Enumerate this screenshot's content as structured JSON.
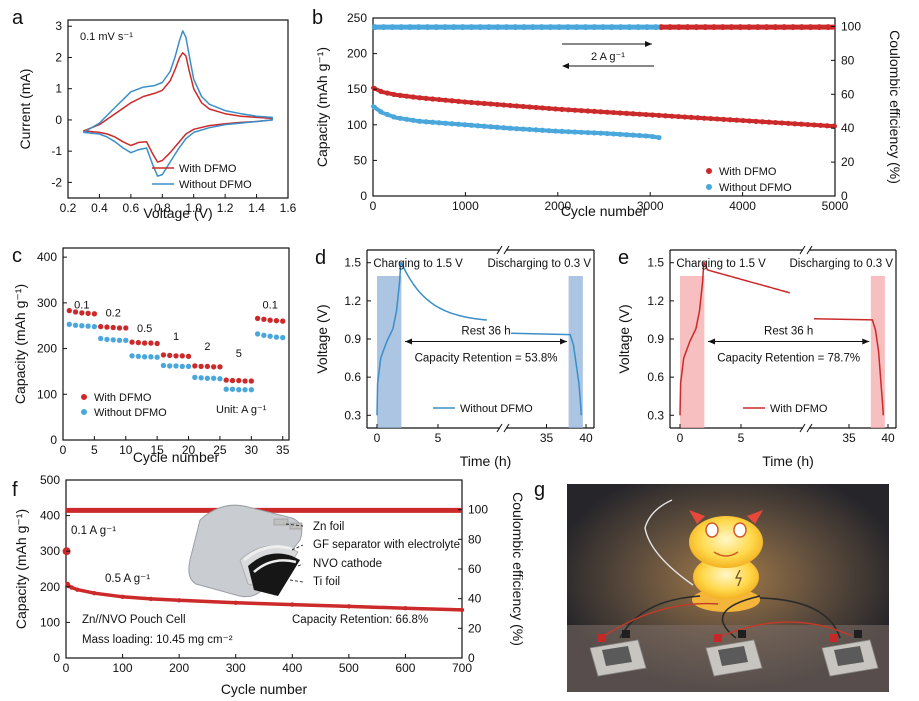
{
  "colors": {
    "red": "#cc2a2a",
    "blue": "#3a8fc8",
    "blue_dot": "#4aa7dc",
    "shade_blue": "#8fb2d9",
    "shade_red": "#f4a9a9",
    "axis": "#111111"
  },
  "panel_labels": {
    "a": "a",
    "b": "b",
    "c": "c",
    "d": "d",
    "e": "e",
    "f": "f",
    "g": "g"
  },
  "chart_data": [
    {
      "id": "a",
      "type": "line",
      "xlabel": "Voltage (V)",
      "ylabel": "Current (mA)",
      "xlim": [
        0.2,
        1.6
      ],
      "ylim": [
        -2.5,
        3.2
      ],
      "xticks": [
        0.2,
        0.4,
        0.6,
        0.8,
        1.0,
        1.2,
        1.4,
        1.6
      ],
      "xtick_labels": [
        "0.2",
        "0.4",
        "0.6",
        "0.8",
        "1.0",
        "1.2",
        "1.4",
        "1.6"
      ],
      "yticks": [
        -2,
        -1,
        0,
        1,
        2,
        3
      ],
      "ytick_labels": [
        "-2",
        "-1",
        "0",
        "1",
        "2",
        "3"
      ],
      "annotation": "0.1 mV s⁻¹",
      "legend": [
        "With DFMO",
        "Without DFMO"
      ],
      "series": [
        {
          "name": "With DFMO",
          "color": "#cc2a2a",
          "x": [
            0.3,
            0.4,
            0.5,
            0.6,
            0.68,
            0.75,
            0.8,
            0.85,
            0.88,
            0.91,
            0.93,
            0.95,
            0.97,
            1.0,
            1.05,
            1.1,
            1.2,
            1.3,
            1.4,
            1.5,
            1.5,
            1.4,
            1.3,
            1.2,
            1.1,
            1.0,
            0.95,
            0.9,
            0.85,
            0.8,
            0.77,
            0.74,
            0.7,
            0.65,
            0.6,
            0.55,
            0.5,
            0.45,
            0.4,
            0.3
          ],
          "y": [
            -0.35,
            -0.15,
            0.2,
            0.55,
            0.75,
            0.85,
            0.95,
            1.25,
            1.6,
            2.0,
            2.15,
            2.05,
            1.6,
            1.0,
            0.55,
            0.35,
            0.2,
            0.12,
            0.08,
            0.05,
            0.0,
            -0.05,
            -0.08,
            -0.12,
            -0.18,
            -0.3,
            -0.45,
            -0.75,
            -1.05,
            -1.3,
            -1.35,
            -1.1,
            -0.7,
            -0.72,
            -0.82,
            -0.7,
            -0.55,
            -0.45,
            -0.4,
            -0.35
          ]
        },
        {
          "name": "Without DFMO",
          "color": "#3a8fc8",
          "x": [
            0.3,
            0.4,
            0.5,
            0.6,
            0.68,
            0.75,
            0.8,
            0.85,
            0.88,
            0.91,
            0.93,
            0.95,
            0.97,
            1.0,
            1.05,
            1.1,
            1.2,
            1.3,
            1.4,
            1.5,
            1.5,
            1.4,
            1.3,
            1.2,
            1.1,
            1.0,
            0.95,
            0.9,
            0.85,
            0.8,
            0.77,
            0.74,
            0.7,
            0.65,
            0.6,
            0.55,
            0.5,
            0.45,
            0.4,
            0.3
          ],
          "y": [
            -0.4,
            -0.1,
            0.4,
            0.9,
            1.05,
            1.1,
            1.2,
            1.55,
            2.0,
            2.55,
            2.85,
            2.65,
            2.1,
            1.3,
            0.75,
            0.5,
            0.3,
            0.2,
            0.12,
            0.08,
            0.0,
            -0.05,
            -0.1,
            -0.15,
            -0.25,
            -0.4,
            -0.6,
            -0.95,
            -1.35,
            -1.75,
            -1.8,
            -1.45,
            -0.9,
            -0.95,
            -1.05,
            -0.9,
            -0.7,
            -0.55,
            -0.45,
            -0.4
          ]
        }
      ]
    },
    {
      "id": "b",
      "type": "scatter",
      "xlabel": "Cycle number",
      "ylabel": "Capacity (mAh g⁻¹)",
      "y2label": "Coulombic efficiency (%)",
      "xlim": [
        0,
        5000
      ],
      "ylim": [
        0,
        250
      ],
      "y2lim": [
        0,
        105
      ],
      "xticks": [
        0,
        1000,
        2000,
        3000,
        4000,
        5000
      ],
      "xtick_labels": [
        "0",
        "1000",
        "2000",
        "3000",
        "4000",
        "5000"
      ],
      "yticks": [
        0,
        50,
        100,
        150,
        200,
        250
      ],
      "ytick_labels": [
        "0",
        "50",
        "100",
        "150",
        "200",
        "250"
      ],
      "y2ticks": [
        0,
        20,
        40,
        60,
        80,
        100
      ],
      "y2tick_labels": [
        "0",
        "20",
        "40",
        "60",
        "80",
        "100"
      ],
      "annotation": "2 A g⁻¹",
      "legend": [
        "With DFMO",
        "Without DFMO"
      ],
      "series": [
        {
          "name": "With DFMO capacity",
          "color": "#cc2a2a",
          "x": [
            0,
            100,
            250,
            500,
            1000,
            1500,
            2000,
            2500,
            3000,
            3500,
            4000,
            4500,
            5000
          ],
          "y": [
            152,
            146,
            142,
            138,
            132,
            127,
            122,
            118,
            114,
            110,
            106,
            102,
            98
          ]
        },
        {
          "name": "Without DFMO capacity",
          "color": "#4aa7dc",
          "x": [
            0,
            100,
            250,
            500,
            1000,
            1500,
            2000,
            2500,
            3000,
            3100
          ],
          "y": [
            126,
            117,
            110,
            105,
            100,
            95,
            91,
            88,
            84,
            82
          ]
        },
        {
          "name": "With DFMO CE",
          "color": "#cc2a2a",
          "axis": "y2",
          "x_range": [
            3100,
            5000
          ],
          "y": 99.6
        },
        {
          "name": "Without DFMO CE",
          "color": "#4aa7dc",
          "axis": "y2",
          "x_range": [
            0,
            3100
          ],
          "y": 99.6
        }
      ]
    },
    {
      "id": "c",
      "type": "scatter",
      "xlabel": "Cycle number",
      "ylabel": "Capacity (mAh g⁻¹)",
      "xlim": [
        0,
        36
      ],
      "ylim": [
        0,
        420
      ],
      "xticks": [
        0,
        5,
        10,
        15,
        20,
        25,
        30,
        35
      ],
      "xtick_labels": [
        "0",
        "5",
        "10",
        "15",
        "20",
        "25",
        "30",
        "35"
      ],
      "yticks": [
        0,
        100,
        200,
        300,
        400
      ],
      "ytick_labels": [
        "0",
        "100",
        "200",
        "300",
        "400"
      ],
      "rate_labels": [
        "0.1",
        "0.2",
        "0.5",
        "1",
        "2",
        "5",
        "0.1"
      ],
      "unit_note": "Unit: A g⁻¹",
      "legend": [
        "With DFMO",
        "Without DFMO"
      ],
      "x": [
        1,
        2,
        3,
        4,
        5,
        6,
        7,
        8,
        9,
        10,
        11,
        12,
        13,
        14,
        15,
        16,
        17,
        18,
        19,
        20,
        21,
        22,
        23,
        24,
        25,
        26,
        27,
        28,
        29,
        30,
        31,
        32,
        33,
        34,
        35
      ],
      "series": [
        {
          "name": "With DFMO",
          "color": "#cc2a2a",
          "values": [
            283,
            280,
            278,
            277,
            276,
            248,
            247,
            246,
            245,
            245,
            214,
            213,
            212,
            212,
            211,
            186,
            185,
            184,
            184,
            183,
            162,
            161,
            161,
            160,
            160,
            131,
            130,
            130,
            129,
            129,
            266,
            264,
            262,
            261,
            260
          ]
        },
        {
          "name": "Without DFMO",
          "color": "#4aa7dc",
          "values": [
            253,
            251,
            250,
            249,
            248,
            222,
            220,
            219,
            218,
            218,
            184,
            183,
            182,
            182,
            181,
            163,
            162,
            162,
            161,
            161,
            137,
            136,
            135,
            135,
            134,
            111,
            111,
            110,
            110,
            110,
            232,
            229,
            227,
            225,
            224
          ]
        }
      ]
    },
    {
      "id": "d",
      "type": "line",
      "xlabel": "Time (h)",
      "ylabel": "Voltage (V)",
      "ylim": [
        0.2,
        1.6
      ],
      "xtick_labels": [
        "0",
        "5",
        "35",
        "40"
      ],
      "yticks": [
        0.3,
        0.6,
        0.9,
        1.2,
        1.5
      ],
      "ytick_labels": [
        "0.3",
        "0.6",
        "0.9",
        "1.2",
        "1.5"
      ],
      "charge_label": "Charging to 1.5 V",
      "discharge_label": "Discharging to 0.3 V",
      "rest_label": "Rest 36 h",
      "retention_label": "Capacity Retention = 53.8%",
      "legend": [
        "Without DFMO"
      ],
      "series": [
        {
          "name": "Without DFMO",
          "color": "#3a8fc8"
        }
      ]
    },
    {
      "id": "e",
      "type": "line",
      "xlabel": "Time (h)",
      "ylabel": "Voltage (V)",
      "ylim": [
        0.2,
        1.6
      ],
      "xtick_labels": [
        "0",
        "5",
        "35",
        "40"
      ],
      "yticks": [
        0.3,
        0.6,
        0.9,
        1.2,
        1.5
      ],
      "ytick_labels": [
        "0.3",
        "0.6",
        "0.9",
        "1.2",
        "1.5"
      ],
      "charge_label": "Charging to 1.5 V",
      "discharge_label": "Discharging to 0.3 V",
      "rest_label": "Rest 36 h",
      "retention_label": "Capacity Retention = 78.7%",
      "legend": [
        "With DFMO"
      ],
      "series": [
        {
          "name": "With DFMO",
          "color": "#cc2a2a"
        }
      ]
    },
    {
      "id": "f",
      "type": "scatter",
      "xlabel": "Cycle number",
      "ylabel": "Capacity (mAh g⁻¹)",
      "y2label": "Coulombic efficiency (%)",
      "xlim": [
        0,
        700
      ],
      "ylim": [
        0,
        500
      ],
      "y2lim": [
        0,
        120
      ],
      "xticks": [
        0,
        100,
        200,
        300,
        400,
        500,
        600,
        700
      ],
      "xtick_labels": [
        "0",
        "100",
        "200",
        "300",
        "400",
        "500",
        "600",
        "700"
      ],
      "yticks": [
        0,
        100,
        200,
        300,
        400,
        500
      ],
      "ytick_labels": [
        "0",
        "100",
        "200",
        "300",
        "400",
        "500"
      ],
      "y2ticks": [
        0,
        20,
        40,
        60,
        80,
        100
      ],
      "y2tick_labels": [
        "0",
        "20",
        "40",
        "60",
        "80",
        "100"
      ],
      "annotations": {
        "low_rate": "0.1 A g⁻¹",
        "high_rate": "0.5 A g⁻¹",
        "cell": "Zn//NVO Pouch Cell",
        "loading": "Mass loading: 10.45 mg cm⁻²",
        "retention": "Capacity Retention: 66.8%"
      },
      "inset_labels": [
        "Zn foil",
        "GF separator with electrolyte",
        "NVO cathode",
        "Ti foil"
      ],
      "series": [
        {
          "name": "Capacity",
          "color": "#cc2a2a",
          "x": [
            1,
            3,
            5,
            10,
            20,
            50,
            100,
            150,
            200,
            300,
            400,
            500,
            600,
            700
          ],
          "y": [
            300,
            208,
            202,
            198,
            192,
            182,
            172,
            166,
            162,
            155,
            150,
            145,
            140,
            135
          ]
        },
        {
          "name": "Coulombic efficiency",
          "color": "#cc2a2a",
          "axis": "y2",
          "x_range": [
            0,
            700
          ],
          "y": 99.5
        }
      ]
    }
  ]
}
